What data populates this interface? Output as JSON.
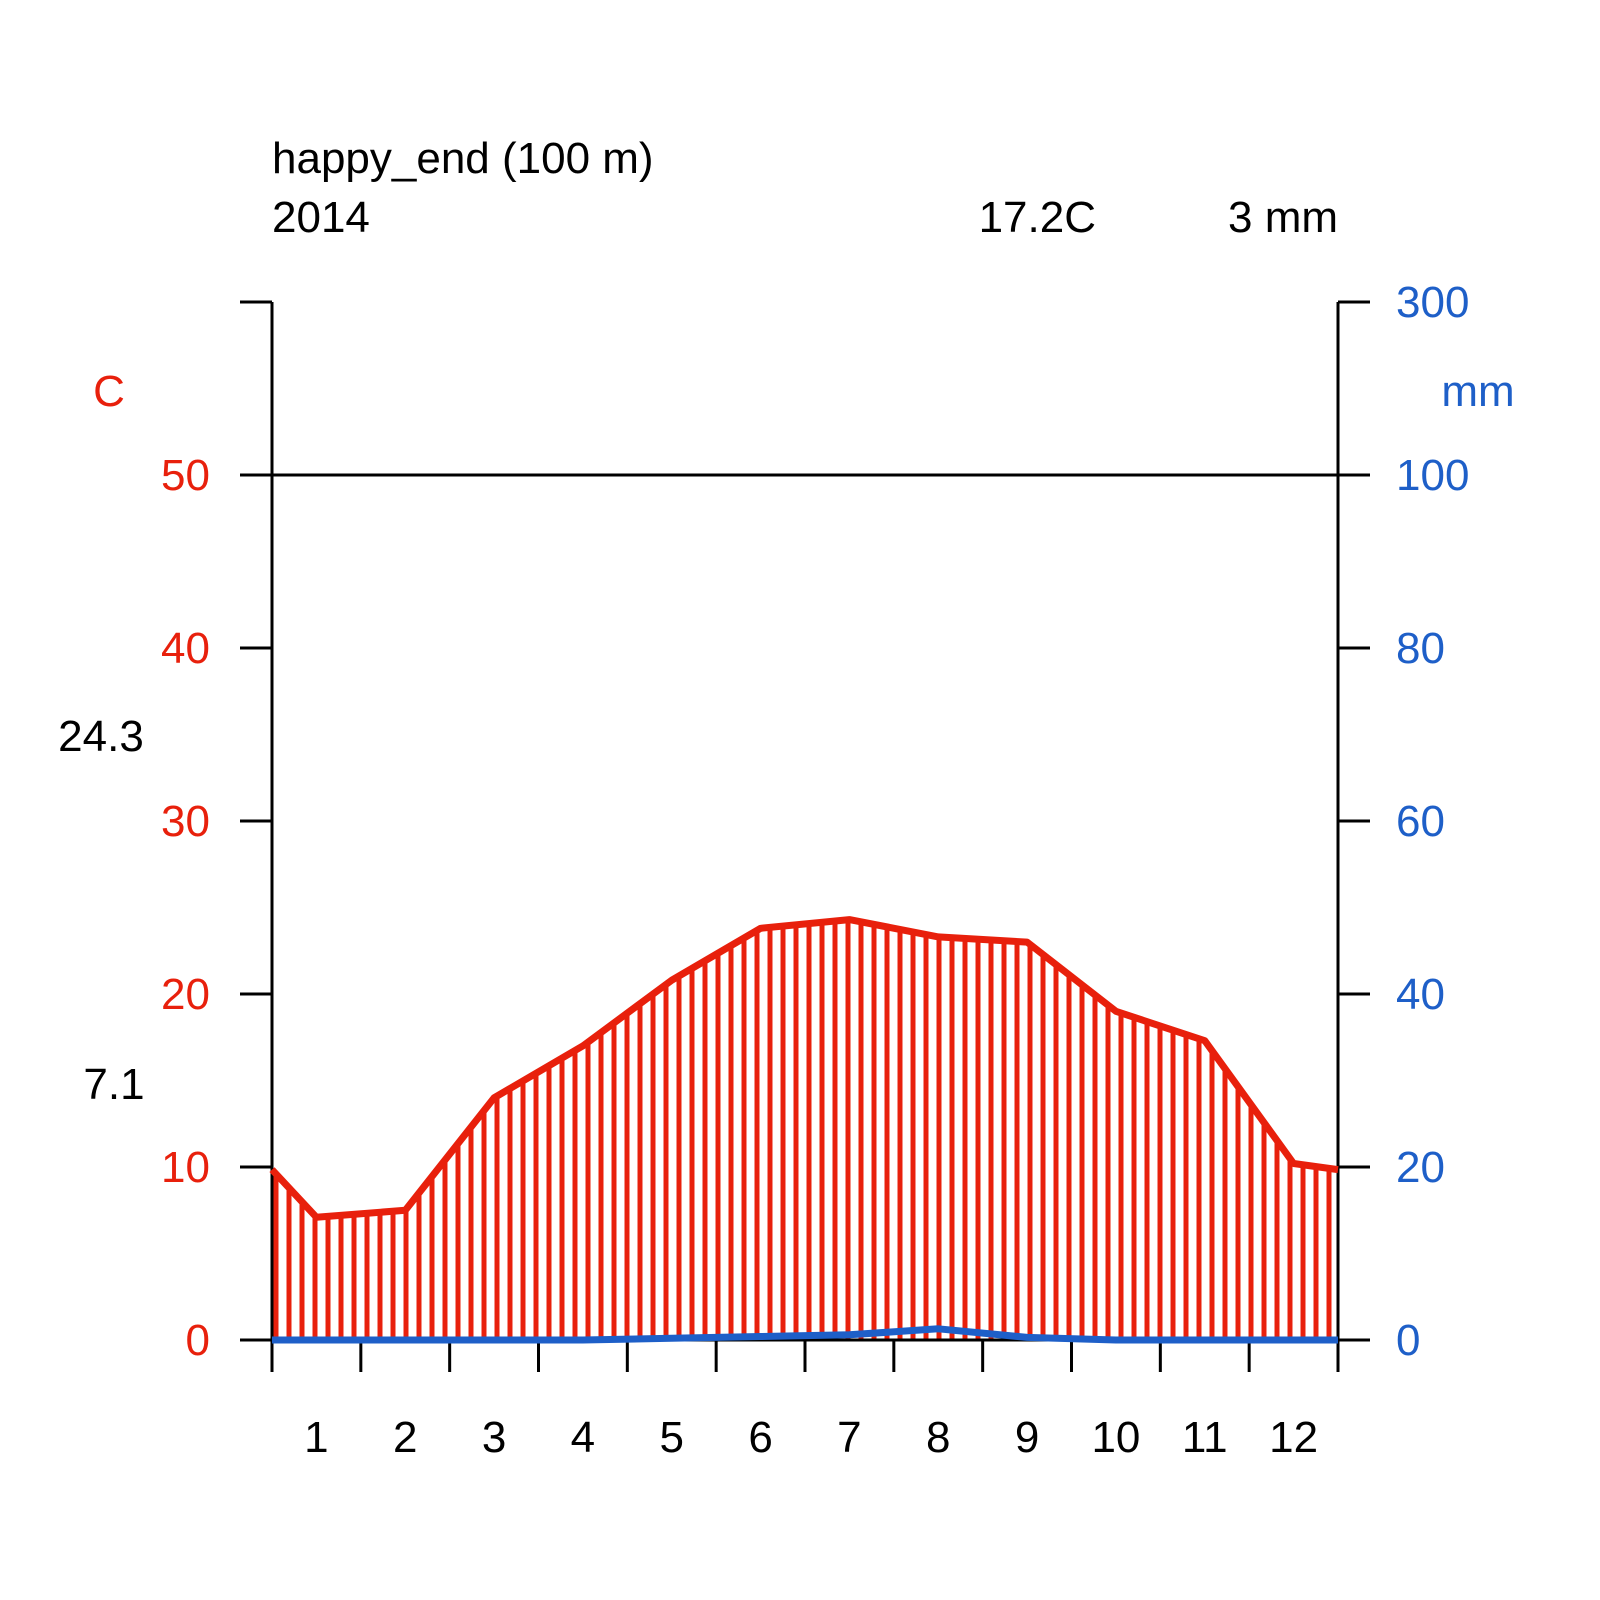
{
  "header": {
    "station": "happy_end (100 m)",
    "period": "2014",
    "mean_temp": "17.2C",
    "annual_precip": "3 mm"
  },
  "side_labels": {
    "max_temp": "24.3",
    "min_temp": "7.1"
  },
  "colors": {
    "temperature": "#e8200c",
    "precipitation": "#1e5fc8",
    "axis": "#000000",
    "text": "#000000"
  },
  "chart_data": {
    "type": "line",
    "title": "happy_end (100 m)",
    "subtitle": "2014",
    "x_categories": [
      "1",
      "2",
      "3",
      "4",
      "5",
      "6",
      "7",
      "8",
      "9",
      "10",
      "11",
      "12"
    ],
    "left_axis": {
      "label": "C",
      "ylim": [
        0,
        60
      ],
      "ticks": [
        0,
        10,
        20,
        30,
        40,
        50
      ],
      "tick_labels": [
        "0",
        "10",
        "20",
        "30",
        "40",
        "50"
      ]
    },
    "right_axis": {
      "label": "mm",
      "ticks": [
        0,
        20,
        40,
        60,
        80,
        100,
        300
      ],
      "tick_labels": [
        "0",
        "20",
        "40",
        "60",
        "80",
        "100",
        "300"
      ]
    },
    "series": [
      {
        "key": "temperature",
        "axis": "left",
        "values": [
          7.1,
          7.5,
          14.0,
          17.0,
          20.8,
          23.8,
          24.3,
          23.3,
          23.0,
          19.0,
          17.3,
          10.2
        ],
        "fill": "vertical-hatch"
      },
      {
        "key": "precipitation",
        "axis": "right",
        "values": [
          0,
          0,
          0,
          0,
          0.2,
          0.4,
          0.6,
          1.3,
          0.3,
          0,
          0,
          0
        ]
      }
    ],
    "reference_line": 50,
    "grid": false,
    "legend": "none"
  }
}
